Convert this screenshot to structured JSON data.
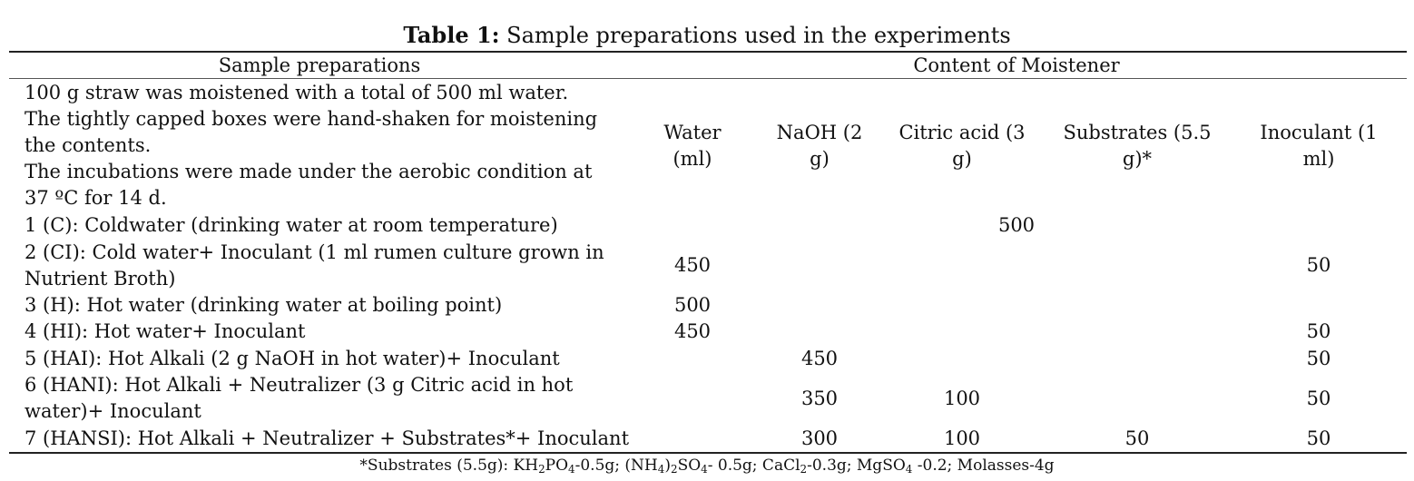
{
  "title": {
    "prefix": "Table 1:",
    "text": " Sample preparations used in the experiments"
  },
  "header": {
    "left": "Sample preparations",
    "right": "Content of Moistener"
  },
  "intro": [
    "100 g straw was moistened with a total of 500 ml water.",
    "The tightly capped boxes were hand-shaken for moistening",
    "the contents.",
    "The incubations were made under the aerobic condition at",
    "37 ºC for 14 d."
  ],
  "columns": [
    {
      "line1": "Water",
      "line2": "(ml)"
    },
    {
      "line1": "NaOH (2",
      "line2": "g)"
    },
    {
      "line1": "Citric acid (3",
      "line2": "g)"
    },
    {
      "line1": "Substrates (5.5",
      "line2": "g)*"
    },
    {
      "line1": "Inoculant (1",
      "line2": "ml)"
    }
  ],
  "rows": [
    {
      "label": [
        "1 (C): Coldwater (drinking water at room temperature)"
      ],
      "spanning_value": "500"
    },
    {
      "label": [
        "2 (CI): Cold water+ Inoculant (1 ml rumen culture grown in",
        "Nutrient Broth)"
      ],
      "values": [
        "450",
        "",
        "",
        "",
        "50"
      ]
    },
    {
      "label": [
        "3 (H): Hot water (drinking water at boiling point)"
      ],
      "values": [
        "500",
        "",
        "",
        "",
        ""
      ]
    },
    {
      "label": [
        "4 (HI): Hot water+ Inoculant"
      ],
      "values": [
        "450",
        "",
        "",
        "",
        "50"
      ]
    },
    {
      "label": [
        "5 (HAI): Hot Alkali (2 g NaOH in hot water)+ Inoculant"
      ],
      "values": [
        "",
        "450",
        "",
        "",
        "50"
      ]
    },
    {
      "label": [
        "6 (HANI): Hot Alkali + Neutralizer (3 g Citric acid in hot",
        "water)+ Inoculant"
      ],
      "values": [
        "",
        "350",
        "100",
        "",
        "50"
      ]
    },
    {
      "label": [
        "7 (HANSI): Hot Alkali + Neutralizer + Substrates*+  Inoculant"
      ],
      "values": [
        "",
        "300",
        "100",
        "50",
        "50"
      ]
    }
  ],
  "footnote": {
    "lead": "*Substrates (5.5g): KH",
    "s1": "2",
    "t1": "PO",
    "s2": "4",
    "t2": "-0.5g; (NH",
    "s3": "4",
    "t3": ")",
    "s4": "2",
    "t4": "SO",
    "s5": "4",
    "t5": "- 0.5g; CaCl",
    "s6": "2",
    "t6": "-0.3g; MgSO",
    "s7": "4",
    "t7": " -0.2; Molasses-4g"
  }
}
